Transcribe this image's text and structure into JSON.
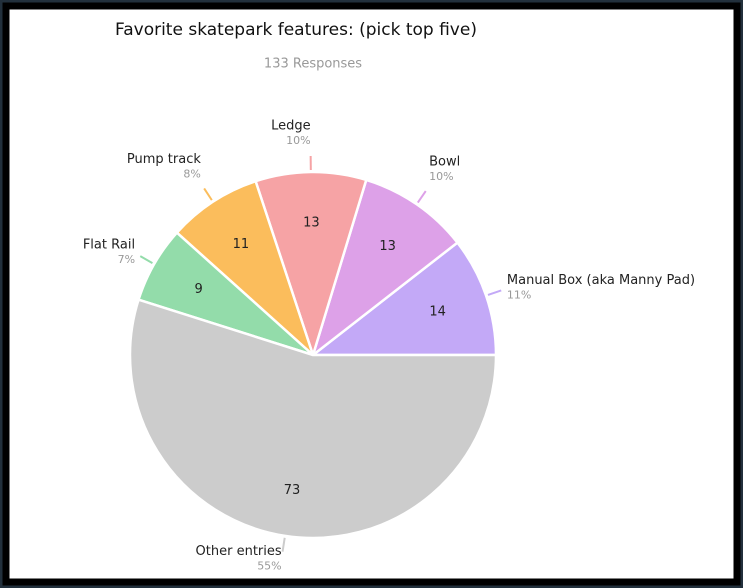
{
  "chart_data": {
    "type": "pie",
    "title": "Favorite skatepark features: (pick top five)",
    "subtitle": "133 Responses",
    "categories": [
      "Manual Box (aka Manny Pad)",
      "Bowl",
      "Ledge",
      "Pump track",
      "Flat Rail",
      "Other entries"
    ],
    "values": [
      14,
      13,
      13,
      11,
      9,
      73
    ],
    "percent_labels": [
      "11%",
      "10%",
      "10%",
      "8%",
      "7%",
      "55%"
    ],
    "colors": [
      "#c3a9f7",
      "#dda1e8",
      "#f6a3a5",
      "#fbbd5c",
      "#93dcaa",
      "#cccccc"
    ]
  }
}
